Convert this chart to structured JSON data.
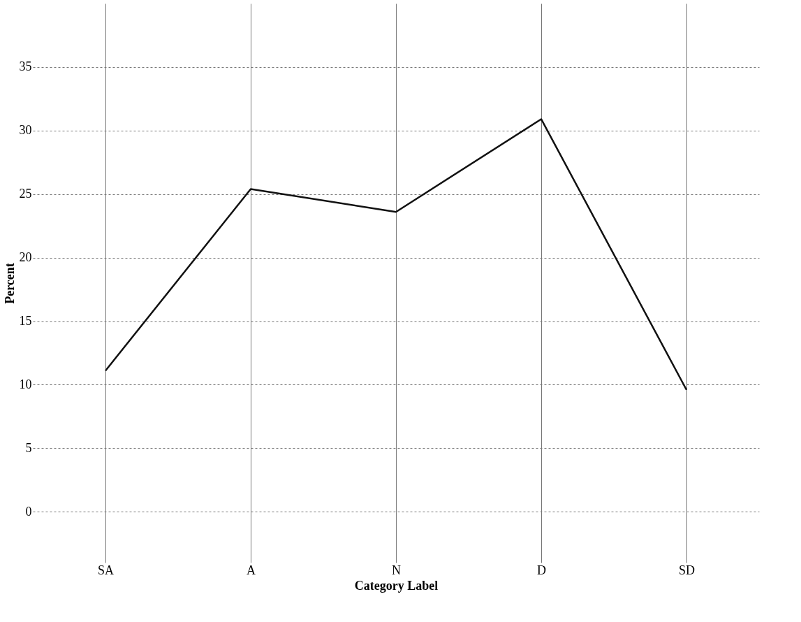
{
  "chart_data": {
    "type": "line",
    "xlabel": "Category Label",
    "ylabel": "Percent",
    "categories": [
      "SA",
      "A",
      "N",
      "D",
      "SD"
    ],
    "series": [
      {
        "color": "#111111",
        "values": [
          11.1,
          25.4,
          23.6,
          30.9,
          9.6
        ]
      }
    ],
    "ylim": [
      -4,
      40
    ],
    "yticks": [
      0,
      5,
      10,
      15,
      20,
      25,
      30,
      35
    ],
    "grid": true,
    "marker": "none",
    "line_style": "solid"
  }
}
